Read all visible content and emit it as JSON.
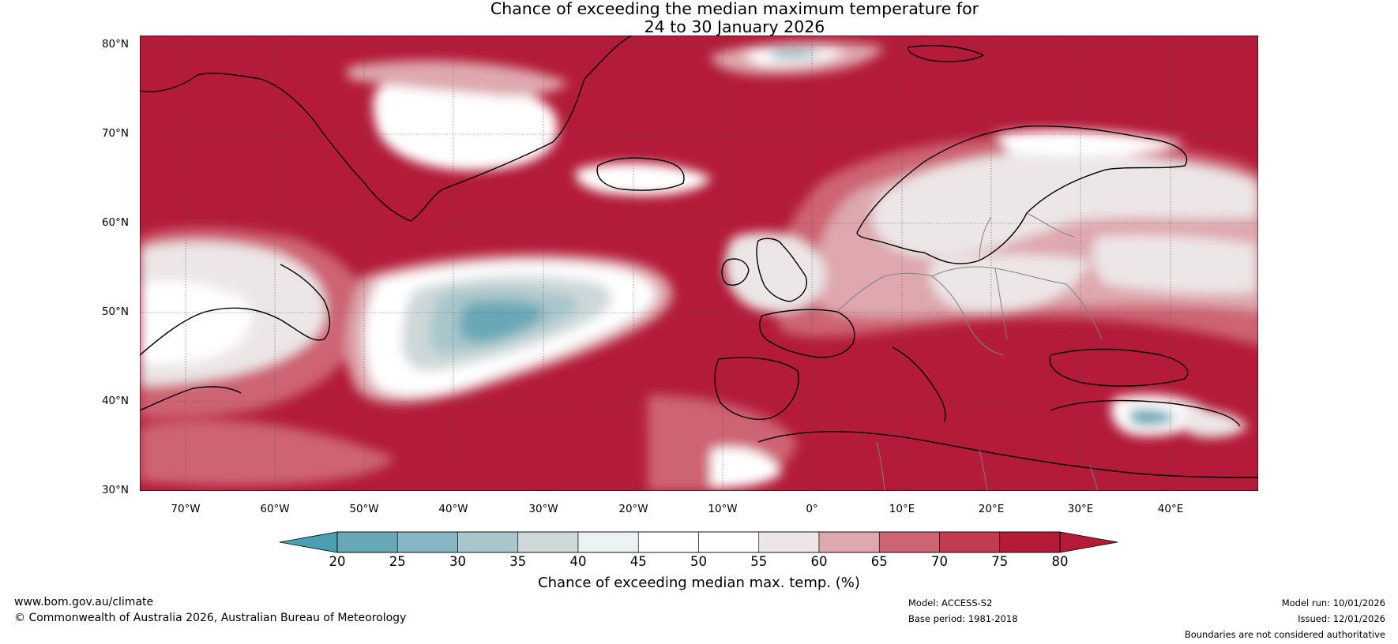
{
  "title": {
    "line1": "Chance of exceeding the median maximum temperature for",
    "line2": "24 to 30 January 2026"
  },
  "map": {
    "lat_labels": [
      "80°N",
      "70°N",
      "60°N",
      "50°N",
      "40°N",
      "30°N"
    ],
    "lon_labels": [
      "70°W",
      "60°W",
      "50°W",
      "40°W",
      "30°W",
      "20°W",
      "10°W",
      "0°",
      "10°E",
      "20°E",
      "30°E",
      "40°E"
    ],
    "lon_range": [
      -75,
      50
    ],
    "lat_range": [
      30,
      81
    ],
    "colors": {
      "c80": "#b31b38",
      "c75": "#c03c4e",
      "c70": "#cd6473",
      "c65": "#dea8ae",
      "c60": "#ece6e7",
      "c55": "#ffffff",
      "c45": "#eaf2f4",
      "c40": "#ced8d9",
      "c35": "#a8c6cb",
      "c30": "#86b6c2",
      "c25": "#67a8b6",
      "c20": "#4b9fb0",
      "land": "#000000",
      "borders": "#808080",
      "grid": "#555555"
    }
  },
  "colorbar": {
    "label": "Chance of exceeding median max. temp. (%)",
    "ticks": [
      "20",
      "25",
      "30",
      "35",
      "40",
      "45",
      "50",
      "55",
      "60",
      "65",
      "70",
      "75",
      "80"
    ],
    "colors": [
      "#4b9fb0",
      "#67a8b6",
      "#86b6c2",
      "#a8c6cb",
      "#ced8d9",
      "#eaf2f4",
      "#ffffff",
      "#ffffff",
      "#ece6e7",
      "#dea8ae",
      "#cd6473",
      "#c03c4e",
      "#b31b38"
    ]
  },
  "footer": {
    "website": "www.bom.gov.au/climate",
    "copyright": "© Commonwealth of Australia 2026, Australian Bureau of Meteorology",
    "model": "Model: ACCESS-S2",
    "base_period": "Base period: 1981-2018",
    "model_run": "Model run: 10/01/2026",
    "issued": "Issued: 12/01/2026",
    "disclaimer": "Boundaries are not considered authoritative"
  }
}
